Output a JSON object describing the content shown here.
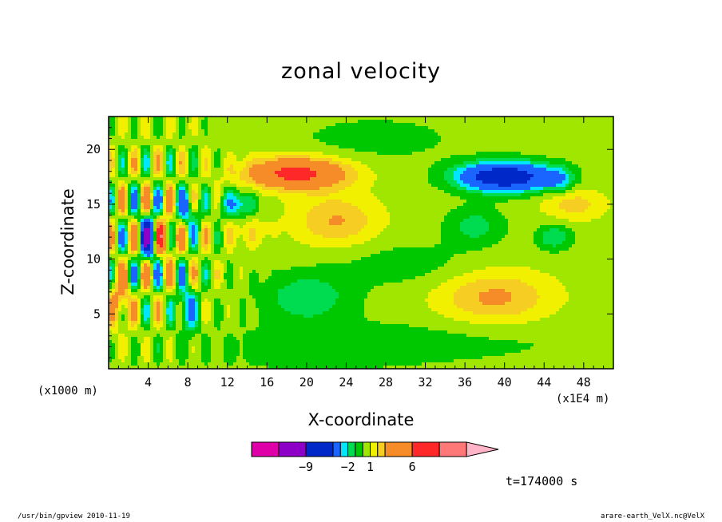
{
  "chart_data": {
    "type": "heatmap",
    "title": "zonal velocity",
    "xlabel": "X-coordinate",
    "ylabel": "Z-coordinate",
    "x_unit_left": "(x1000 m)",
    "x_unit_right": "(x1E4 m)",
    "xlim": [
      0,
      51
    ],
    "ylim": [
      0,
      23
    ],
    "x_ticks": [
      "4",
      "8",
      "12",
      "16",
      "20",
      "24",
      "28",
      "32",
      "36",
      "40",
      "44",
      "48"
    ],
    "y_ticks": [
      "5",
      "10",
      "15",
      "20"
    ],
    "colorbar": {
      "levels": [
        -12,
        -9,
        -6,
        -3,
        -2,
        -1,
        0,
        1,
        2,
        3,
        6,
        9,
        12
      ],
      "colors": [
        "#e000a8",
        "#8c00c8",
        "#0028c8",
        "#1a64ff",
        "#00e6ff",
        "#00dc50",
        "#00c800",
        "#a0e600",
        "#f0f000",
        "#f5cd23",
        "#f58c28",
        "#ff2828",
        "#ff7878",
        "#ffb4c8"
      ],
      "labels": [
        "-9",
        "-2",
        "1",
        "6"
      ]
    },
    "regions": [
      {
        "name": "background",
        "value": 0.5
      },
      {
        "name": "positive-jet-upper-left",
        "center": [
          19,
          17.8
        ],
        "peak": 6
      },
      {
        "name": "negative-jet-upper-right",
        "center": [
          40,
          17.5
        ],
        "peak": -9
      },
      {
        "name": "negative-core-left",
        "center": [
          4,
          12
        ],
        "peak": -9
      },
      {
        "name": "positive-core-left",
        "center": [
          5.7,
          12
        ],
        "peak": 6
      },
      {
        "name": "negative-lower-left",
        "center": [
          20,
          6.5
        ],
        "peak": -1.5
      },
      {
        "name": "positive-lower-right",
        "center": [
          39,
          6.5
        ],
        "peak": 2.5
      },
      {
        "name": "negative-mid-right",
        "center": [
          37,
          13
        ],
        "peak": -1.5
      },
      {
        "name": "positive-mid-center",
        "center": [
          23,
          13.5
        ],
        "peak": 2.5
      }
    ]
  },
  "annotation": {
    "time": "t=174000 s"
  },
  "footer": {
    "left": "/usr/bin/gpview  2010-11-19",
    "right": "arare-earth_VelX.nc@VelX"
  }
}
